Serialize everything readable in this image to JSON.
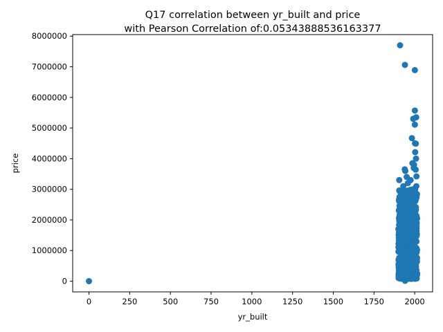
{
  "chart_data": {
    "type": "scatter",
    "title": "Q17 correlation between yr_built and price",
    "subtitle": "with Pearson Correlation of:0.05343888536163377",
    "xlabel": "yr_built",
    "ylabel": "price",
    "xlim": [
      -100,
      2110
    ],
    "ylim": [
      -350000,
      8050000
    ],
    "xticks": [
      0,
      250,
      500,
      750,
      1000,
      1250,
      1500,
      1750,
      2000
    ],
    "yticks": [
      0,
      1000000,
      2000000,
      3000000,
      4000000,
      5000000,
      6000000,
      7000000,
      8000000
    ],
    "x_tick_labels": [
      "0",
      "250",
      "500",
      "750",
      "1000",
      "1250",
      "1500",
      "1750",
      "2000"
    ],
    "y_tick_labels": [
      "0",
      "1000000",
      "2000000",
      "3000000",
      "4000000",
      "5000000",
      "6000000",
      "7000000",
      "8000000"
    ],
    "marker_color": "#1f77b4",
    "grid": false,
    "legend": "none",
    "dense_cluster": {
      "x_range": [
        1900,
        2015
      ],
      "y_range": [
        80000,
        3000000
      ]
    },
    "points": [
      {
        "x": 0,
        "y": 0
      },
      {
        "x": 1910,
        "y": 7700000
      },
      {
        "x": 1940,
        "y": 7060000
      },
      {
        "x": 2001,
        "y": 6890000
      },
      {
        "x": 2001,
        "y": 5570000
      },
      {
        "x": 2009,
        "y": 5350000
      },
      {
        "x": 1991,
        "y": 5300000
      },
      {
        "x": 2001,
        "y": 5110000
      },
      {
        "x": 1983,
        "y": 4670000
      },
      {
        "x": 2002,
        "y": 4500000
      },
      {
        "x": 2007,
        "y": 4490000
      },
      {
        "x": 2003,
        "y": 4210000
      },
      {
        "x": 2008,
        "y": 4000000
      },
      {
        "x": 1986,
        "y": 3850000
      },
      {
        "x": 1996,
        "y": 3800000
      },
      {
        "x": 1994,
        "y": 3700000
      },
      {
        "x": 2006,
        "y": 3640000
      },
      {
        "x": 1939,
        "y": 3650000
      },
      {
        "x": 1942,
        "y": 3600000
      },
      {
        "x": 2011,
        "y": 3420000
      },
      {
        "x": 1951,
        "y": 3400000
      },
      {
        "x": 1905,
        "y": 3300000
      },
      {
        "x": 1958,
        "y": 3200000
      },
      {
        "x": 1930,
        "y": 3100000
      },
      {
        "x": 1990,
        "y": 3000000
      },
      {
        "x": 1941,
        "y": 10000
      },
      {
        "x": 1906,
        "y": 200000
      },
      {
        "x": 2014,
        "y": 200000
      },
      {
        "x": 1900,
        "y": 1700000
      },
      {
        "x": 1960,
        "y": 2900000
      },
      {
        "x": 1975,
        "y": 3300000
      },
      {
        "x": 2010,
        "y": 3100000
      }
    ]
  }
}
